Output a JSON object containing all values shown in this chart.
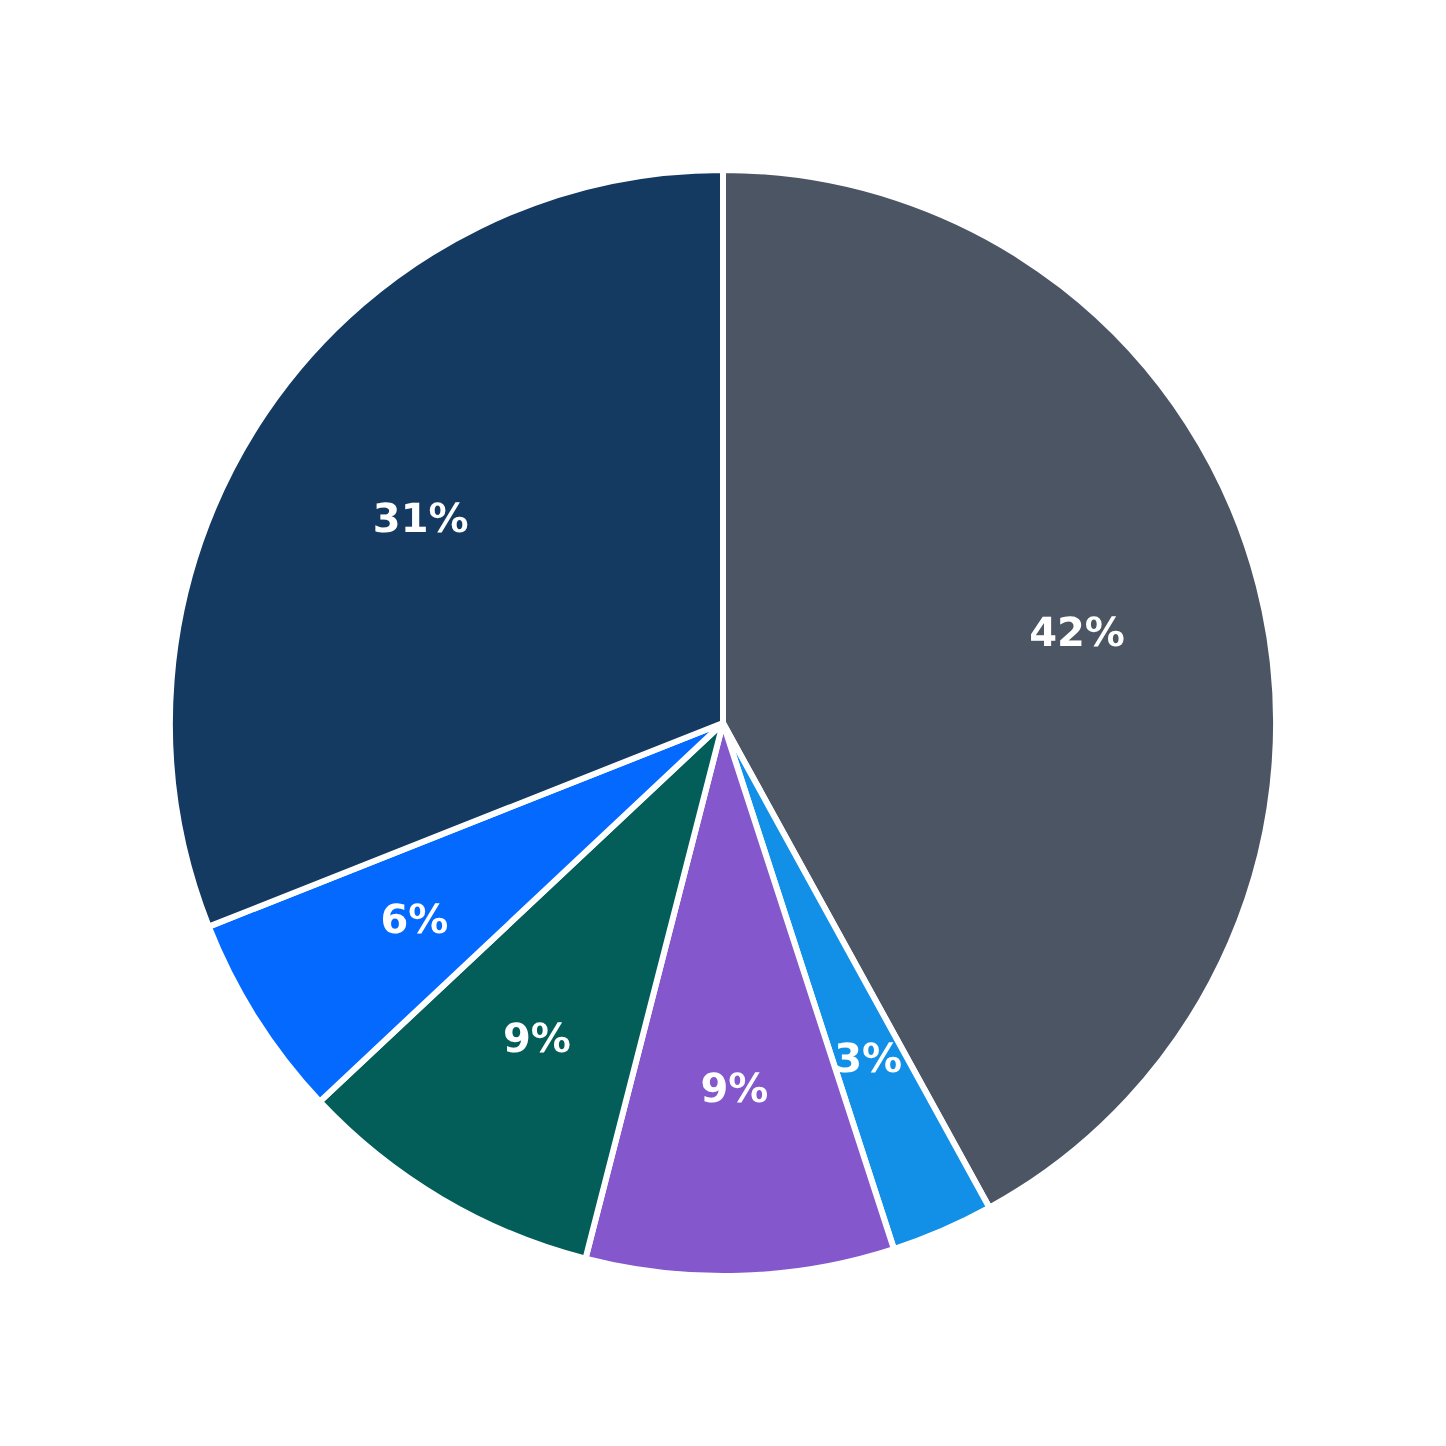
{
  "chart_data": {
    "type": "pie",
    "categories": [
      null,
      null,
      null,
      null,
      null,
      null
    ],
    "values": [
      42,
      3,
      9,
      9,
      6,
      31
    ],
    "colors": [
      "#4b5563",
      "#1290e8",
      "#8458cc",
      "#035e5a",
      "#0469ff",
      "#153a62"
    ],
    "value_labels": [
      "42%",
      "3%",
      "9%",
      "9%",
      "6%",
      "31%"
    ]
  }
}
